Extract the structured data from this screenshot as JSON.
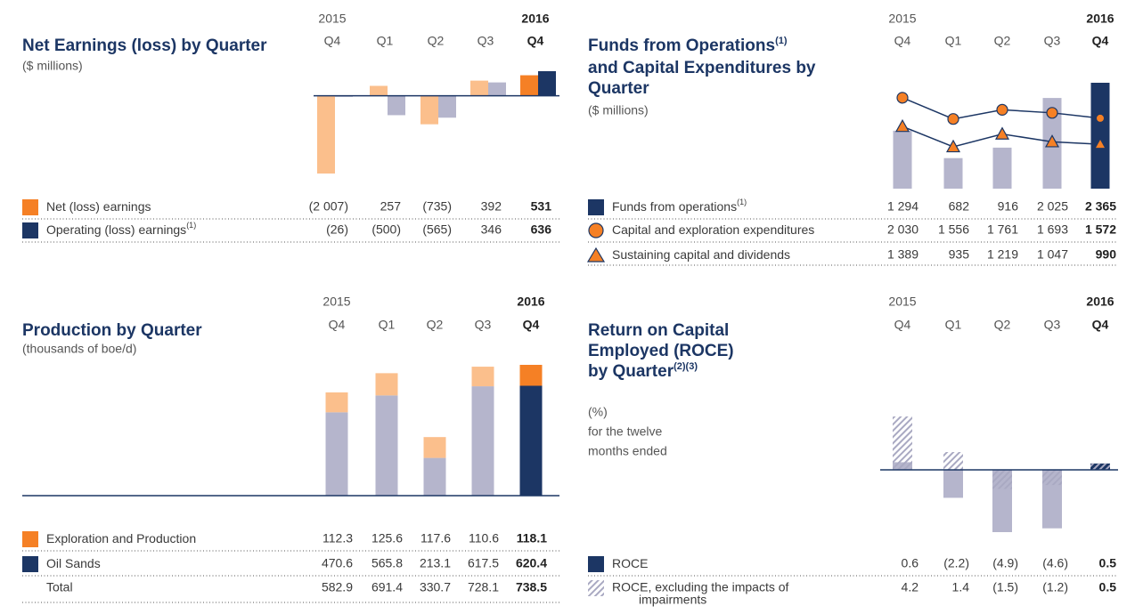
{
  "chart_data": [
    {
      "type": "grouped",
      "title": "Net Earnings (loss) by Quarter",
      "subtitle": "($ millions)",
      "years": [
        "2015",
        null,
        null,
        null,
        "2016"
      ],
      "categories": [
        "Q4",
        "Q1",
        "Q2",
        "Q3",
        "Q4"
      ],
      "series": [
        {
          "name": "Net (loss) earnings",
          "marker": "square",
          "color": "#fbbf8c",
          "highlight_color": "#f58025",
          "values": [
            -2007,
            257,
            -735,
            392,
            531
          ],
          "value_labels": [
            "(2 007)",
            "257",
            "(735)",
            "392",
            "531"
          ]
        },
        {
          "name": "Operating (loss) earnings",
          "note": "(1)",
          "marker": "square",
          "color": "#b5b5cc",
          "highlight_color": "#1c3664",
          "values": [
            -26,
            -500,
            -565,
            346,
            636
          ],
          "value_labels": [
            "(26)",
            "(500)",
            "(565)",
            "346",
            "636"
          ]
        }
      ]
    },
    {
      "type": "combo",
      "title": [
        "Funds from Operations",
        "and Capital Expenditures by",
        "Quarter"
      ],
      "title_note": "(1)",
      "subtitle": "($ millions)",
      "years": [
        "2015",
        null,
        null,
        null,
        "2016"
      ],
      "categories": [
        "Q4",
        "Q1",
        "Q2",
        "Q3",
        "Q4"
      ],
      "series": [
        {
          "name": "Funds from operations",
          "note": "(1)",
          "marker": "square",
          "color": "#b5b5cc",
          "highlight_color": "#1c3664",
          "values": [
            1294,
            682,
            916,
            2025,
            2365
          ],
          "value_labels": [
            "1 294",
            "682",
            "916",
            "2 025",
            "2 365"
          ]
        },
        {
          "name": "Capital and exploration expenditures",
          "marker": "circle",
          "color": "#f58025",
          "line_color": "#1c3664",
          "values": [
            2030,
            1556,
            1761,
            1693,
            1572
          ],
          "value_labels": [
            "2 030",
            "1 556",
            "1 761",
            "1 693",
            "1 572"
          ]
        },
        {
          "name": "Sustaining capital and dividends",
          "marker": "triangle",
          "color": "#f58025",
          "line_color": "#1c3664",
          "values": [
            1389,
            935,
            1219,
            1047,
            990
          ],
          "value_labels": [
            "1 389",
            "935",
            "1 219",
            "1 047",
            "990"
          ]
        }
      ]
    },
    {
      "type": "stacked",
      "title": "Production by Quarter",
      "subtitle": "(thousands of boe/d)",
      "years": [
        "2015",
        null,
        null,
        null,
        "2016"
      ],
      "categories": [
        "Q4",
        "Q1",
        "Q2",
        "Q3",
        "Q4"
      ],
      "series": [
        {
          "name": "Oil Sands",
          "marker": "square",
          "color": "#b5b5cc",
          "highlight_color": "#1c3664",
          "values": [
            470.6,
            565.8,
            213.1,
            617.5,
            620.4
          ]
        },
        {
          "name": "Exploration and Production",
          "marker": "square",
          "color": "#fbbf8c",
          "highlight_color": "#f58025",
          "values": [
            112.3,
            125.6,
            117.6,
            110.6,
            118.1
          ]
        }
      ],
      "total": {
        "name": "Total",
        "values": [
          582.9,
          691.4,
          330.7,
          728.1,
          738.5
        ]
      }
    },
    {
      "type": "overlaid",
      "title": [
        "Return on Capital",
        "Employed (ROCE)",
        "by Quarter"
      ],
      "title_note": "(2)(3)",
      "subtitle": [
        "(%)",
        "for the twelve",
        "months ended"
      ],
      "years": [
        "2015",
        null,
        null,
        null,
        "2016"
      ],
      "categories": [
        "Q4",
        "Q1",
        "Q2",
        "Q3",
        "Q4"
      ],
      "series": [
        {
          "name": "ROCE",
          "marker": "square",
          "color": "#b5b5cc",
          "highlight_color": "#1c3664",
          "values": [
            0.6,
            -2.2,
            -4.9,
            -4.6,
            0.5
          ],
          "value_labels": [
            "0.6",
            "(2.2)",
            "(4.9)",
            "(4.6)",
            "0.5"
          ]
        },
        {
          "name": [
            "ROCE, excluding the impacts of",
            "impairments"
          ],
          "marker": "hatch",
          "color": "#a9a9c2",
          "values": [
            4.2,
            1.4,
            -1.5,
            -1.2,
            0.5
          ],
          "value_labels": [
            "4.2",
            "1.4",
            "(1.5)",
            "(1.2)",
            "0.5"
          ]
        }
      ]
    }
  ]
}
